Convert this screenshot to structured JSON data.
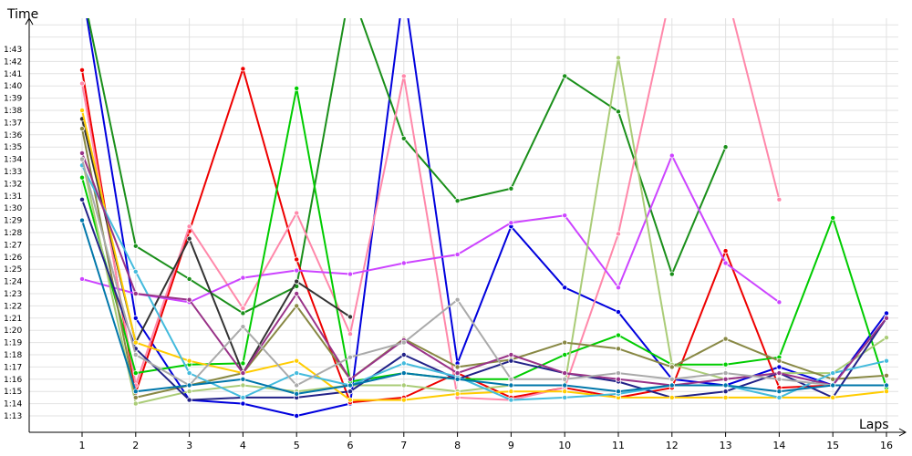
{
  "chart_data": {
    "type": "line",
    "xlabel": "Laps",
    "ylabel": "Time",
    "x_ticks": [
      "1",
      "2",
      "3",
      "4",
      "5",
      "6",
      "7",
      "8",
      "9",
      "10",
      "11",
      "12",
      "13",
      "14",
      "15",
      "16"
    ],
    "y_ticks": [
      "1:13",
      "1:14",
      "1:15",
      "1:16",
      "1:17",
      "1:18",
      "1:19",
      "1:20",
      "1:21",
      "1:22",
      "1:23",
      "1:24",
      "1:25",
      "1:26",
      "1:27",
      "1:28",
      "1:29",
      "1:30",
      "1:31",
      "1:32",
      "1:33",
      "1:34",
      "1:35",
      "1:36",
      "1:37",
      "1:38",
      "1:39",
      "1:40",
      "1:41",
      "1:42",
      "1:43"
    ],
    "ylim_seconds": [
      72,
      75.0
    ],
    "grid": true,
    "series": [
      {
        "color": "#0000dd",
        "values": [
          108,
          81.0,
          74.3,
          74.0,
          73.0,
          74.0,
          108,
          77.3,
          88.5,
          83.5,
          81.5,
          76.0,
          75.5,
          77.0,
          75.5,
          81.4
        ]
      },
      {
        "color": "#1a8f1a",
        "values": [
          108,
          86.9,
          84.2,
          81.4,
          83.6,
          108,
          95.7,
          90.6,
          91.6,
          100.8,
          97.9,
          84.6,
          95.0,
          null,
          null,
          null
        ]
      },
      {
        "color": "#ee0000",
        "values": [
          101.3,
          74.9,
          88.1,
          101.4,
          85.8,
          74.1,
          74.5,
          76.5,
          74.5,
          75.3,
          74.5,
          75.3,
          86.5,
          75.3,
          75.5,
          75.5
        ]
      },
      {
        "color": "#ff88aa",
        "values": [
          100.2,
          75.5,
          88.5,
          81.8,
          89.6,
          79.7,
          100.8,
          74.5,
          74.3,
          75.3,
          87.9,
          108,
          108,
          90.7,
          null,
          null
        ]
      },
      {
        "color": "#cc44ff",
        "values": [
          84.2,
          83.0,
          82.3,
          84.3,
          84.9,
          84.6,
          85.5,
          86.2,
          88.8,
          89.4,
          83.5,
          94.3,
          85.5,
          82.3,
          null,
          null
        ]
      },
      {
        "color": "#00cc00",
        "values": [
          92.5,
          76.5,
          77.2,
          77.3,
          99.8,
          75.8,
          76.5,
          76.0,
          76.0,
          78.0,
          79.6,
          77.2,
          77.2,
          77.8,
          89.2,
          75.3
        ]
      },
      {
        "color": "#333333",
        "values": [
          97.3,
          79.0,
          87.5,
          76.5,
          84.0,
          81.1,
          null,
          null,
          null,
          null,
          null,
          null,
          null,
          null,
          null,
          null
        ]
      },
      {
        "color": "#aacc77",
        "values": [
          94.0,
          74.0,
          75.0,
          75.5,
          75.0,
          75.5,
          75.5,
          75.0,
          75.5,
          75.5,
          102.3,
          77.2,
          76.0,
          76.5,
          76.5,
          79.4
        ]
      },
      {
        "color": "#888844",
        "values": [
          96.5,
          74.5,
          75.5,
          76.5,
          82.0,
          76.0,
          79.3,
          77.0,
          77.6,
          79.0,
          78.5,
          77.0,
          79.3,
          77.5,
          76.0,
          76.3
        ]
      },
      {
        "color": "#222288",
        "values": [
          90.7,
          78.5,
          74.3,
          74.5,
          74.5,
          75.0,
          78.0,
          76.0,
          77.5,
          76.5,
          75.8,
          74.5,
          75.0,
          76.5,
          74.5,
          81.0
        ]
      },
      {
        "color": "#ffcc00",
        "values": [
          98.0,
          79.0,
          77.5,
          76.5,
          77.5,
          74.3,
          74.3,
          74.8,
          75.0,
          75.0,
          74.5,
          74.5,
          74.5,
          74.5,
          74.5,
          75.0
        ]
      },
      {
        "color": "#44bbdd",
        "values": [
          93.5,
          84.8,
          76.5,
          74.5,
          76.5,
          75.5,
          77.3,
          76.2,
          74.3,
          74.5,
          74.8,
          75.5,
          75.5,
          74.5,
          76.5,
          77.5
        ]
      },
      {
        "color": "#993388",
        "values": [
          94.5,
          83.0,
          82.5,
          76.5,
          83.0,
          76.0,
          79.2,
          76.5,
          78.0,
          76.5,
          76.0,
          75.5,
          76.0,
          76.5,
          75.5,
          81.0
        ]
      },
      {
        "color": "#aaaaaa",
        "values": [
          94.0,
          78.0,
          75.5,
          80.3,
          75.5,
          77.8,
          79.0,
          82.5,
          76.0,
          76.0,
          76.5,
          76.0,
          76.5,
          76.0,
          75.5,
          75.5
        ]
      },
      {
        "color": "#0077aa",
        "values": [
          89.0,
          75.0,
          75.5,
          76.0,
          74.8,
          75.5,
          76.5,
          76.0,
          75.5,
          75.5,
          75.0,
          75.5,
          75.5,
          75.0,
          75.5,
          75.5
        ]
      }
    ]
  }
}
